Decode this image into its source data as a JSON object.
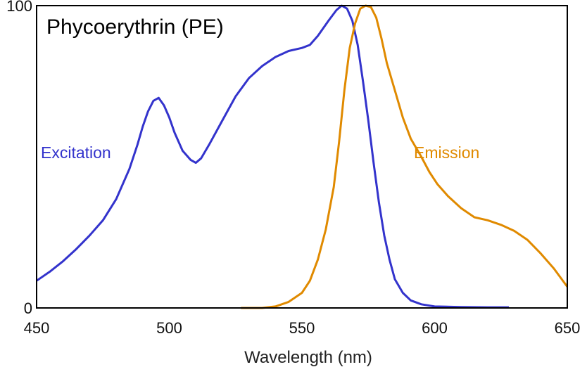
{
  "chart_data": {
    "type": "line",
    "title": "Phycoerythrin (PE)",
    "xlabel": "Wavelength (nm)",
    "ylabel": "",
    "xlim": [
      450,
      650
    ],
    "ylim": [
      0,
      100
    ],
    "x_ticks": [
      "450",
      "500",
      "550",
      "600",
      "650"
    ],
    "y_ticks": [
      "0",
      "100"
    ],
    "grid": false,
    "series": [
      {
        "name": "Excitation",
        "color": "#3333cc",
        "points": [
          [
            450,
            9
          ],
          [
            455,
            12
          ],
          [
            460,
            15.5
          ],
          [
            465,
            19.5
          ],
          [
            470,
            24
          ],
          [
            475,
            29
          ],
          [
            480,
            36
          ],
          [
            485,
            46
          ],
          [
            488,
            54
          ],
          [
            490,
            60
          ],
          [
            492,
            65
          ],
          [
            494,
            68.5
          ],
          [
            496,
            69.5
          ],
          [
            498,
            67
          ],
          [
            500,
            63
          ],
          [
            502,
            58
          ],
          [
            505,
            52
          ],
          [
            508,
            49
          ],
          [
            510,
            48
          ],
          [
            512,
            49.5
          ],
          [
            515,
            54
          ],
          [
            520,
            62
          ],
          [
            525,
            70
          ],
          [
            530,
            76
          ],
          [
            535,
            80
          ],
          [
            540,
            83
          ],
          [
            545,
            85
          ],
          [
            550,
            86
          ],
          [
            553,
            87
          ],
          [
            556,
            90
          ],
          [
            560,
            95
          ],
          [
            563,
            98.5
          ],
          [
            565,
            100
          ],
          [
            567,
            99
          ],
          [
            569,
            95
          ],
          [
            571,
            87
          ],
          [
            573,
            75
          ],
          [
            575,
            62
          ],
          [
            577,
            48
          ],
          [
            579,
            35
          ],
          [
            581,
            24
          ],
          [
            583,
            16
          ],
          [
            585,
            9.5
          ],
          [
            588,
            5
          ],
          [
            591,
            2.5
          ],
          [
            595,
            1.2
          ],
          [
            600,
            0.5
          ],
          [
            610,
            0.3
          ],
          [
            620,
            0.2
          ],
          [
            628,
            0.2
          ]
        ]
      },
      {
        "name": "Emission",
        "color": "#e08a00",
        "points": [
          [
            527,
            0
          ],
          [
            535,
            0
          ],
          [
            540,
            0.5
          ],
          [
            545,
            2
          ],
          [
            550,
            5
          ],
          [
            553,
            9
          ],
          [
            556,
            16
          ],
          [
            559,
            26
          ],
          [
            562,
            40
          ],
          [
            564,
            55
          ],
          [
            566,
            72
          ],
          [
            568,
            86
          ],
          [
            570,
            94
          ],
          [
            572,
            99
          ],
          [
            574,
            100
          ],
          [
            576,
            99.5
          ],
          [
            578,
            96
          ],
          [
            580,
            89
          ],
          [
            582,
            81
          ],
          [
            585,
            72
          ],
          [
            588,
            63
          ],
          [
            591,
            56
          ],
          [
            595,
            50
          ],
          [
            598,
            45
          ],
          [
            601,
            41
          ],
          [
            605,
            37
          ],
          [
            610,
            33
          ],
          [
            615,
            30
          ],
          [
            620,
            29
          ],
          [
            625,
            27.5
          ],
          [
            630,
            25.5
          ],
          [
            635,
            22.5
          ],
          [
            640,
            18
          ],
          [
            645,
            13
          ],
          [
            650,
            7
          ]
        ]
      }
    ]
  }
}
